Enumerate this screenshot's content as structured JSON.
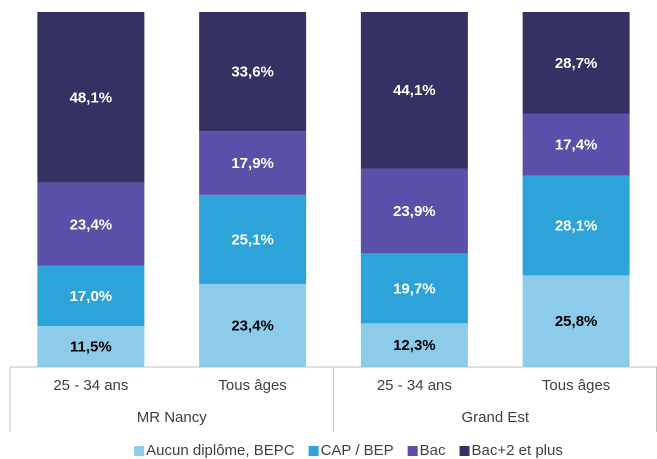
{
  "chart_data": {
    "type": "stacked_bar",
    "groups": [
      {
        "name": "MR Nancy",
        "categories": [
          "25 - 34 ans",
          "Tous âges"
        ]
      },
      {
        "name": "Grand Est",
        "categories": [
          "25 - 34 ans",
          "Tous âges"
        ]
      }
    ],
    "series": [
      {
        "name": "Aucun diplôme, BEPC",
        "color": "#8dcbea",
        "label_color": "#000000",
        "values": [
          11.5,
          23.4,
          12.3,
          25.8
        ],
        "value_labels": [
          "11,5%",
          "23,4%",
          "12,3%",
          "25,8%"
        ]
      },
      {
        "name": "CAP / BEP",
        "color": "#2ea3da",
        "label_color": "#ffffff",
        "values": [
          17.0,
          25.1,
          19.7,
          28.1
        ],
        "value_labels": [
          "17,0%",
          "25,1%",
          "19,7%",
          "28,1%"
        ]
      },
      {
        "name": "Bac",
        "color": "#5a4fa9",
        "label_color": "#ffffff",
        "values": [
          23.4,
          17.9,
          23.9,
          17.4
        ],
        "value_labels": [
          "23,4%",
          "17,9%",
          "23,9%",
          "17,4%"
        ]
      },
      {
        "name": "Bac+2 et plus",
        "color": "#363163",
        "label_color": "#ffffff",
        "values": [
          48.1,
          33.6,
          44.1,
          28.7
        ],
        "value_labels": [
          "48,1%",
          "33,6%",
          "44,1%",
          "28,7%"
        ]
      }
    ],
    "legend": "bottom"
  }
}
